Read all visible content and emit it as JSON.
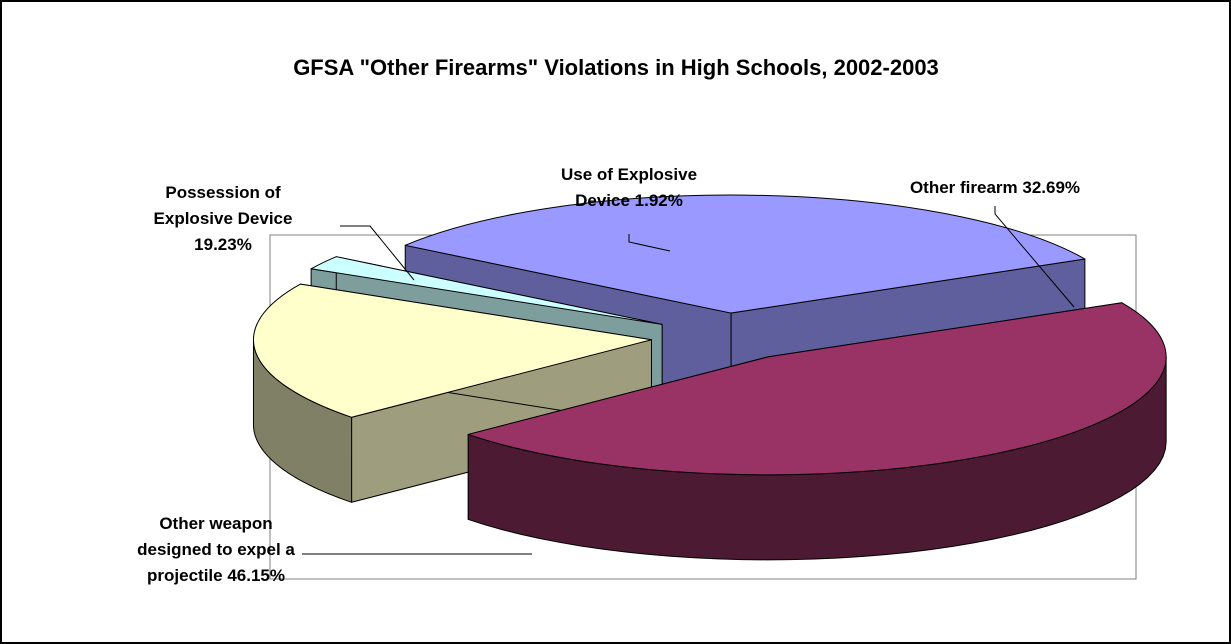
{
  "chart_data": {
    "type": "pie",
    "subtype": "3d-exploded",
    "title": "GFSA \"Other Firearms\" Violations in High Schools, 2002-2003",
    "slices": [
      {
        "name": "Other firearm",
        "value": 32.69,
        "color": "#9999ff",
        "label_lines": [
          "Other firearm 32.69%"
        ]
      },
      {
        "name": "Other weapon designed to expel a projectile",
        "value": 46.15,
        "color": "#993366",
        "label_lines": [
          "Other weapon",
          "designed to expel a",
          "projectile 46.15%"
        ]
      },
      {
        "name": "Possession of Explosive Device",
        "value": 19.23,
        "color": "#ffffcc",
        "label_lines": [
          "Possession of",
          "Explosive Device",
          "19.23%"
        ]
      },
      {
        "name": "Use of Explosive Device",
        "value": 1.92,
        "color": "#ccffff",
        "label_lines": [
          "Use of Explosive",
          "Device 1.92%"
        ]
      }
    ]
  }
}
